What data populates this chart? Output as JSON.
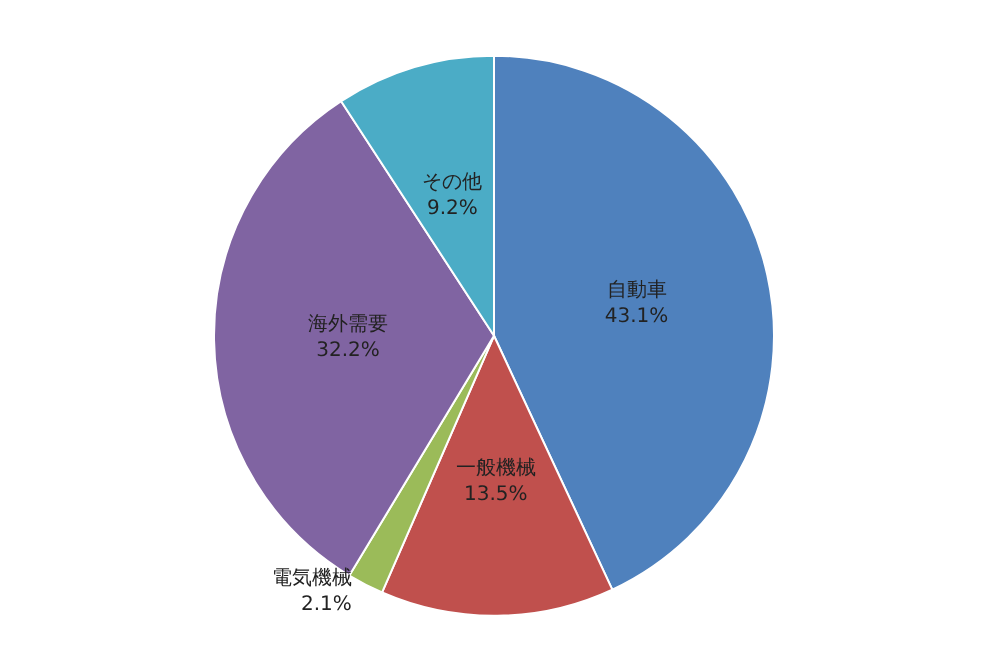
{
  "chart_data": {
    "type": "pie",
    "categories": [
      "自動車",
      "一般機械",
      "電気機械",
      "海外需要",
      "その他"
    ],
    "values": [
      43.1,
      13.5,
      2.1,
      32.2,
      9.2
    ],
    "value_labels": [
      "43.1%",
      "13.5%",
      "2.1%",
      "32.2%",
      "9.2%"
    ],
    "colors": [
      "#4f81bd",
      "#c0504d",
      "#9bbb59",
      "#8064a2",
      "#4bacc6"
    ],
    "legend": false
  }
}
